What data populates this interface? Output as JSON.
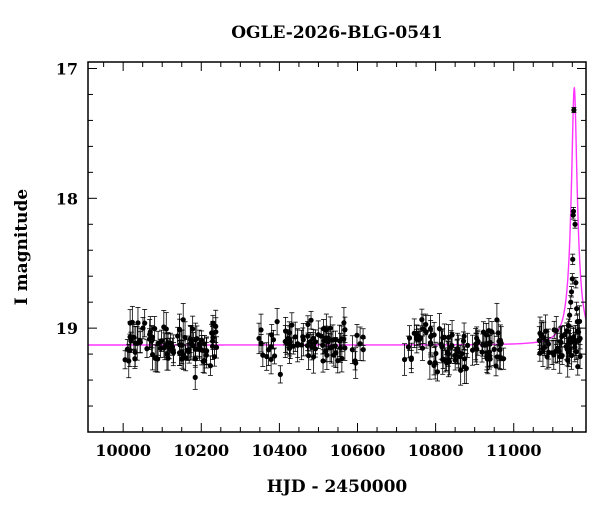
{
  "chart_data": {
    "type": "scatter",
    "title": "OGLE-2026-BLG-0541",
    "xlabel": "HJD - 2450000",
    "ylabel": "I magnitude",
    "xlim": [
      9910,
      11185
    ],
    "ylim": [
      19.8,
      16.95
    ],
    "y_inverted": true,
    "grid": false,
    "x_ticks": [
      10000,
      10200,
      10400,
      10600,
      10800,
      11000
    ],
    "y_ticks": [
      17,
      18,
      19
    ],
    "baseline_magnitude": 19.13,
    "colors": {
      "points": "#000000",
      "model": "#ff33ff"
    },
    "model": {
      "type": "line",
      "baseline": 19.13,
      "peak_time": 11155,
      "peak_magnitude": 17.15,
      "half_width_days": 6
    },
    "peak_points": [
      {
        "x": 11130,
        "y": 19.05,
        "err": 0.07
      },
      {
        "x": 11136,
        "y": 19.02,
        "err": 0.06
      },
      {
        "x": 11140,
        "y": 18.98,
        "err": 0.05
      },
      {
        "x": 11143,
        "y": 18.9,
        "err": 0.05
      },
      {
        "x": 11146,
        "y": 18.8,
        "err": 0.05
      },
      {
        "x": 11148,
        "y": 18.72,
        "err": 0.04
      },
      {
        "x": 11150,
        "y": 18.62,
        "err": 0.04
      },
      {
        "x": 11151,
        "y": 18.47,
        "err": 0.04
      },
      {
        "x": 11152,
        "y": 18.13,
        "err": 0.03
      },
      {
        "x": 11153,
        "y": 18.1,
        "err": 0.03
      },
      {
        "x": 11154,
        "y": 17.32,
        "err": 0.02
      },
      {
        "x": 11157,
        "y": 18.2,
        "err": 0.03
      },
      {
        "x": 11159,
        "y": 18.65,
        "err": 0.04
      },
      {
        "x": 11161,
        "y": 18.85,
        "err": 0.05
      },
      {
        "x": 11163,
        "y": 18.95,
        "err": 0.06
      },
      {
        "x": 11166,
        "y": 19.03,
        "err": 0.07
      },
      {
        "x": 11170,
        "y": 19.08,
        "err": 0.08
      }
    ],
    "baseline_segments": [
      {
        "x_start": 9995,
        "x_end": 10240,
        "count": 95
      },
      {
        "x_start": 10345,
        "x_end": 10615,
        "count": 80
      },
      {
        "x_start": 10720,
        "x_end": 10975,
        "count": 95
      },
      {
        "x_start": 11065,
        "x_end": 11170,
        "count": 45
      }
    ]
  }
}
